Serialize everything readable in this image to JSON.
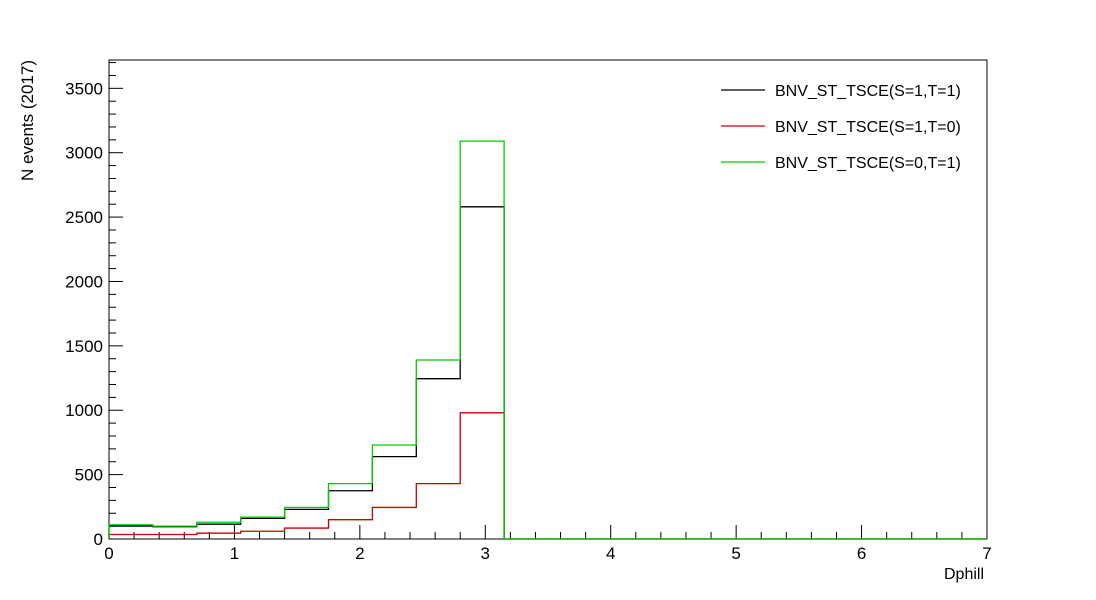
{
  "chart_data": {
    "type": "histogram",
    "xlabel": "Dphill",
    "ylabel": "N events (2017)",
    "xlim": [
      0,
      7
    ],
    "ylim": [
      0,
      3720
    ],
    "x_ticks": [
      0,
      1,
      2,
      3,
      4,
      5,
      6,
      7
    ],
    "y_ticks": [
      0,
      500,
      1000,
      1500,
      2000,
      2500,
      3000,
      3500
    ],
    "bin_edges": [
      0,
      0.35,
      0.7,
      1.05,
      1.4,
      1.75,
      2.1,
      2.45,
      2.8,
      3.15,
      3.5,
      3.85,
      4.2,
      4.55,
      4.9,
      5.25,
      5.6,
      5.95,
      6.3,
      6.65,
      7.0
    ],
    "legend_position": "top-right",
    "grid": false,
    "series": [
      {
        "name": "BNV_ST_TSCE(S=1,T=1)",
        "color": "#000000",
        "values": [
          100,
          95,
          115,
          160,
          230,
          375,
          640,
          1245,
          2580,
          0,
          0,
          0,
          0,
          0,
          0,
          0,
          0,
          0,
          0,
          0
        ]
      },
      {
        "name": "BNV_ST_TSCE(S=1,T=0)",
        "color": "#cc0000",
        "values": [
          35,
          35,
          45,
          60,
          85,
          150,
          245,
          430,
          980,
          0,
          0,
          0,
          0,
          0,
          0,
          0,
          0,
          0,
          0,
          0
        ]
      },
      {
        "name": "BNV_ST_TSCE(S=0,T=1)",
        "color": "#00cc00",
        "values": [
          110,
          100,
          130,
          170,
          245,
          430,
          730,
          1390,
          3090,
          0,
          0,
          0,
          0,
          0,
          0,
          0,
          0,
          0,
          0,
          0
        ]
      }
    ]
  }
}
